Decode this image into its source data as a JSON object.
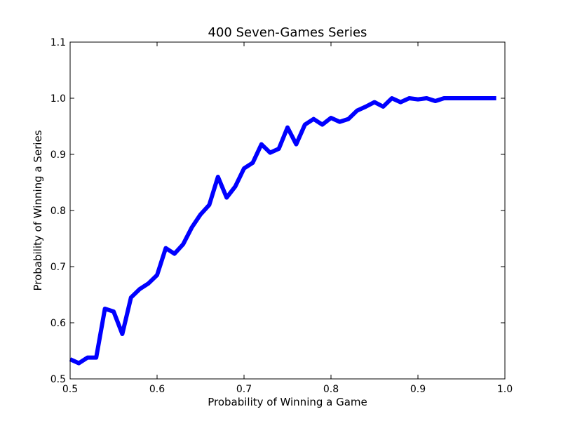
{
  "chart_data": {
    "type": "line",
    "title": "400 Seven-Games Series",
    "xlabel": "Probability of Winning a Game",
    "ylabel": "Probability of Winning a Series",
    "xlim": [
      0.5,
      1.0
    ],
    "ylim": [
      0.5,
      1.1
    ],
    "xticks": [
      "0.5",
      "0.6",
      "0.7",
      "0.8",
      "0.9",
      "1.0"
    ],
    "yticks": [
      "0.5",
      "0.6",
      "0.7",
      "0.8",
      "0.9",
      "1.0",
      "1.1"
    ],
    "grid": false,
    "line_color": "#0000ff",
    "series": [
      {
        "x": [
          0.5,
          0.51,
          0.52,
          0.53,
          0.54,
          0.55,
          0.56,
          0.57,
          0.58,
          0.59,
          0.6,
          0.61,
          0.62,
          0.63,
          0.64,
          0.65,
          0.66,
          0.67,
          0.68,
          0.69,
          0.7,
          0.71,
          0.72,
          0.73,
          0.74,
          0.75,
          0.76,
          0.77,
          0.78,
          0.79,
          0.8,
          0.81,
          0.82,
          0.83,
          0.84,
          0.85,
          0.86,
          0.87,
          0.88,
          0.89,
          0.9,
          0.91,
          0.92,
          0.93,
          0.94,
          0.95,
          0.96,
          0.97,
          0.98,
          0.99
        ],
        "y": [
          0.535,
          0.528,
          0.538,
          0.538,
          0.625,
          0.62,
          0.58,
          0.645,
          0.66,
          0.67,
          0.685,
          0.733,
          0.723,
          0.74,
          0.77,
          0.793,
          0.81,
          0.86,
          0.823,
          0.843,
          0.875,
          0.885,
          0.918,
          0.903,
          0.91,
          0.948,
          0.918,
          0.953,
          0.963,
          0.953,
          0.965,
          0.958,
          0.963,
          0.978,
          0.985,
          0.993,
          0.985,
          1.0,
          0.993,
          1.0,
          0.998,
          1.0,
          0.995,
          1.0,
          1.0,
          1.0,
          1.0,
          1.0,
          1.0,
          1.0
        ]
      }
    ]
  }
}
